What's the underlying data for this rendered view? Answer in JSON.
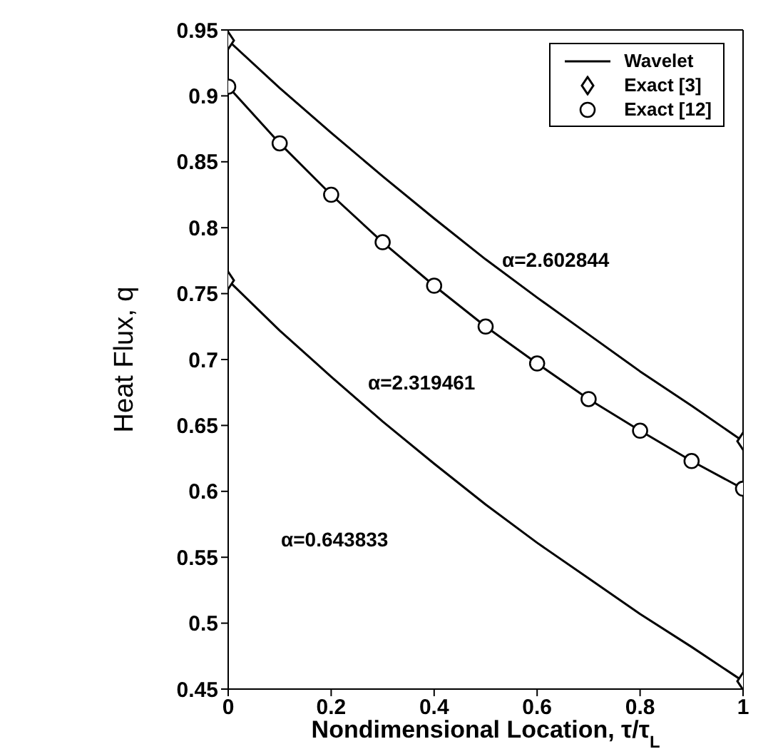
{
  "chart_data": {
    "type": "line",
    "xlabel": "Nondimensional Location, τ/τ$_{L}$",
    "ylabel": "Heat Flux, q",
    "xlim": [
      0,
      1
    ],
    "xticks": [
      0,
      0.2,
      0.4,
      0.6,
      0.8,
      1
    ],
    "ylim": [
      0.45,
      0.95
    ],
    "yticks": [
      0.45,
      0.5,
      0.55,
      0.6,
      0.65,
      0.7,
      0.75,
      0.8,
      0.85,
      0.9,
      0.95
    ],
    "legend": "top right",
    "grid": false,
    "line_style": "solid",
    "series": [
      {
        "name": "Wavelet",
        "color": "#000000",
        "marker": "none",
        "x": [
          0,
          0.1,
          0.2,
          0.3,
          0.4,
          0.5,
          0.6,
          0.7,
          0.8,
          0.9,
          1
        ],
        "values": [
          0.942,
          0.906,
          0.872,
          0.839,
          0.807,
          0.776,
          0.747,
          0.719,
          0.691,
          0.665,
          0.638
        ]
      },
      {
        "color": "#000000",
        "marker": "none",
        "x": [
          0,
          0.1,
          0.2,
          0.3,
          0.4,
          0.5,
          0.6,
          0.7,
          0.8,
          0.9,
          1
        ],
        "values": [
          0.907,
          0.864,
          0.825,
          0.789,
          0.756,
          0.725,
          0.697,
          0.67,
          0.646,
          0.623,
          0.602
        ]
      },
      {
        "color": "#000000",
        "marker": "none",
        "x": [
          0,
          0.1,
          0.2,
          0.3,
          0.4,
          0.5,
          0.6,
          0.7,
          0.8,
          0.9,
          1
        ],
        "values": [
          0.76,
          0.722,
          0.687,
          0.653,
          0.621,
          0.59,
          0.561,
          0.534,
          0.507,
          0.482,
          0.456
        ]
      },
      {
        "name": "Exact [3]",
        "type": "scatter",
        "color": "#000000",
        "marker": "diamond",
        "x": [
          0,
          1,
          0,
          1
        ],
        "values": [
          0.942,
          0.638,
          0.76,
          0.456
        ]
      },
      {
        "name": "Exact [12]",
        "type": "scatter",
        "color": "#000000",
        "marker": "circle",
        "x": [
          0,
          0.1,
          0.2,
          0.3,
          0.4,
          0.5,
          0.6,
          0.7,
          0.8,
          0.9,
          1
        ],
        "values": [
          0.907,
          0.864,
          0.825,
          0.789,
          0.756,
          0.725,
          0.697,
          0.67,
          0.646,
          0.623,
          0.602
        ]
      }
    ],
    "annotations": [
      "α=2.602844",
      "α=2.319461",
      "α=0.643833"
    ]
  }
}
